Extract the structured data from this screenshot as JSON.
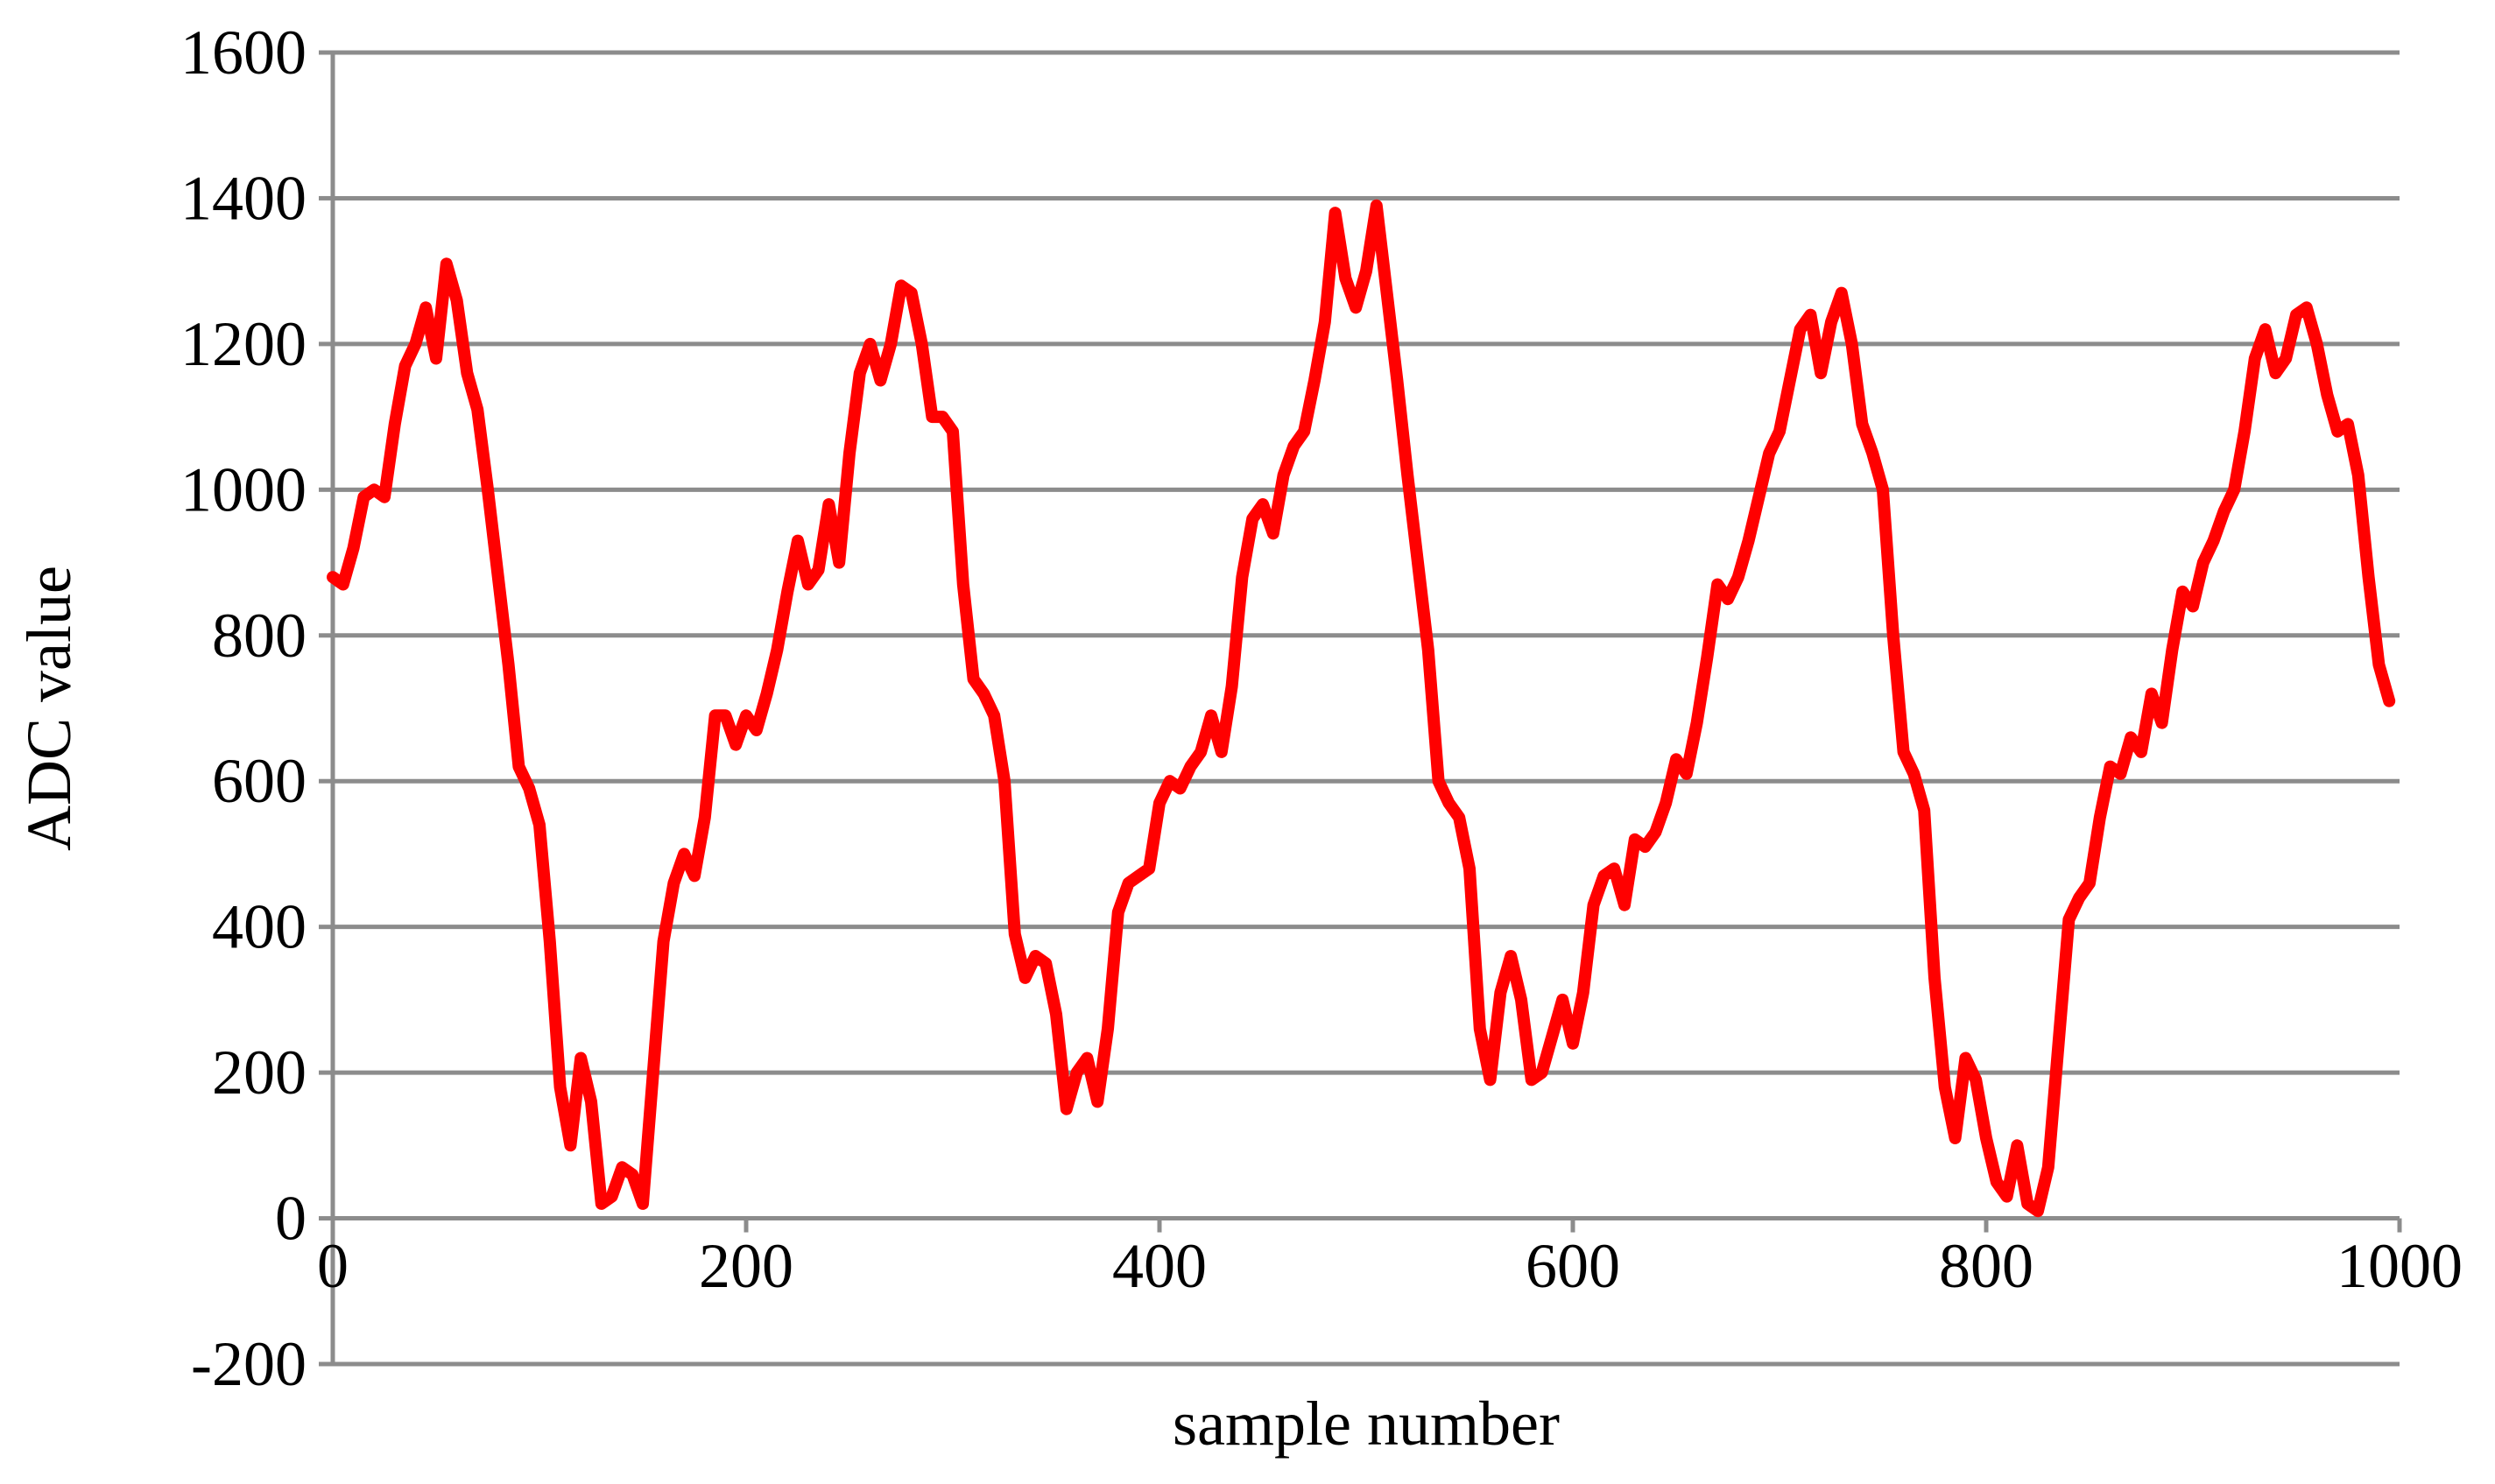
{
  "chart_data": {
    "type": "line",
    "title": "",
    "xlabel": "sample number",
    "ylabel": "ADC value",
    "xlim": [
      0,
      1000
    ],
    "ylim": [
      -200,
      1600
    ],
    "x_ticks": [
      0,
      200,
      400,
      600,
      800,
      1000
    ],
    "y_ticks": [
      -200,
      0,
      200,
      400,
      600,
      800,
      1000,
      1200,
      1400,
      1600
    ],
    "grid": "horizontal",
    "legend": "none",
    "series": [
      {
        "color": "#ff0000",
        "points": [
          [
            0,
            880
          ],
          [
            5,
            870
          ],
          [
            10,
            920
          ],
          [
            15,
            990
          ],
          [
            20,
            1000
          ],
          [
            25,
            990
          ],
          [
            30,
            1090
          ],
          [
            35,
            1170
          ],
          [
            40,
            1200
          ],
          [
            45,
            1250
          ],
          [
            50,
            1180
          ],
          [
            55,
            1310
          ],
          [
            60,
            1260
          ],
          [
            65,
            1160
          ],
          [
            70,
            1110
          ],
          [
            75,
            1000
          ],
          [
            80,
            880
          ],
          [
            85,
            760
          ],
          [
            90,
            620
          ],
          [
            95,
            590
          ],
          [
            100,
            540
          ],
          [
            105,
            380
          ],
          [
            110,
            180
          ],
          [
            115,
            100
          ],
          [
            120,
            220
          ],
          [
            125,
            160
          ],
          [
            130,
            20
          ],
          [
            135,
            30
          ],
          [
            140,
            70
          ],
          [
            145,
            60
          ],
          [
            150,
            20
          ],
          [
            155,
            200
          ],
          [
            160,
            380
          ],
          [
            165,
            460
          ],
          [
            170,
            500
          ],
          [
            175,
            470
          ],
          [
            180,
            550
          ],
          [
            185,
            690
          ],
          [
            190,
            690
          ],
          [
            195,
            650
          ],
          [
            200,
            690
          ],
          [
            205,
            670
          ],
          [
            210,
            720
          ],
          [
            215,
            780
          ],
          [
            220,
            860
          ],
          [
            225,
            930
          ],
          [
            230,
            870
          ],
          [
            235,
            890
          ],
          [
            240,
            980
          ],
          [
            245,
            900
          ],
          [
            250,
            1050
          ],
          [
            255,
            1160
          ],
          [
            260,
            1200
          ],
          [
            265,
            1150
          ],
          [
            270,
            1200
          ],
          [
            275,
            1280
          ],
          [
            280,
            1270
          ],
          [
            285,
            1200
          ],
          [
            290,
            1100
          ],
          [
            295,
            1100
          ],
          [
            300,
            1080
          ],
          [
            305,
            870
          ],
          [
            310,
            740
          ],
          [
            315,
            720
          ],
          [
            320,
            690
          ],
          [
            325,
            600
          ],
          [
            330,
            390
          ],
          [
            335,
            330
          ],
          [
            340,
            360
          ],
          [
            345,
            350
          ],
          [
            350,
            280
          ],
          [
            355,
            150
          ],
          [
            360,
            200
          ],
          [
            365,
            220
          ],
          [
            370,
            160
          ],
          [
            375,
            260
          ],
          [
            380,
            420
          ],
          [
            385,
            460
          ],
          [
            390,
            470
          ],
          [
            395,
            480
          ],
          [
            400,
            570
          ],
          [
            405,
            600
          ],
          [
            410,
            590
          ],
          [
            415,
            620
          ],
          [
            420,
            640
          ],
          [
            425,
            690
          ],
          [
            430,
            640
          ],
          [
            435,
            730
          ],
          [
            440,
            880
          ],
          [
            445,
            960
          ],
          [
            450,
            980
          ],
          [
            455,
            940
          ],
          [
            460,
            1020
          ],
          [
            465,
            1060
          ],
          [
            470,
            1080
          ],
          [
            475,
            1150
          ],
          [
            480,
            1230
          ],
          [
            485,
            1380
          ],
          [
            490,
            1290
          ],
          [
            495,
            1250
          ],
          [
            500,
            1300
          ],
          [
            505,
            1390
          ],
          [
            510,
            1270
          ],
          [
            515,
            1150
          ],
          [
            520,
            1020
          ],
          [
            525,
            900
          ],
          [
            530,
            780
          ],
          [
            535,
            600
          ],
          [
            540,
            570
          ],
          [
            545,
            550
          ],
          [
            550,
            480
          ],
          [
            555,
            260
          ],
          [
            560,
            190
          ],
          [
            565,
            310
          ],
          [
            570,
            360
          ],
          [
            575,
            300
          ],
          [
            580,
            190
          ],
          [
            585,
            200
          ],
          [
            590,
            250
          ],
          [
            595,
            300
          ],
          [
            600,
            240
          ],
          [
            605,
            310
          ],
          [
            610,
            430
          ],
          [
            615,
            470
          ],
          [
            620,
            480
          ],
          [
            625,
            430
          ],
          [
            630,
            520
          ],
          [
            635,
            510
          ],
          [
            640,
            530
          ],
          [
            645,
            570
          ],
          [
            650,
            630
          ],
          [
            655,
            610
          ],
          [
            660,
            680
          ],
          [
            665,
            770
          ],
          [
            670,
            870
          ],
          [
            675,
            850
          ],
          [
            680,
            880
          ],
          [
            685,
            930
          ],
          [
            690,
            990
          ],
          [
            695,
            1050
          ],
          [
            700,
            1080
          ],
          [
            705,
            1150
          ],
          [
            710,
            1220
          ],
          [
            715,
            1240
          ],
          [
            720,
            1160
          ],
          [
            725,
            1230
          ],
          [
            730,
            1270
          ],
          [
            735,
            1200
          ],
          [
            740,
            1090
          ],
          [
            745,
            1050
          ],
          [
            750,
            1000
          ],
          [
            755,
            800
          ],
          [
            760,
            640
          ],
          [
            765,
            610
          ],
          [
            770,
            560
          ],
          [
            775,
            330
          ],
          [
            780,
            180
          ],
          [
            785,
            110
          ],
          [
            790,
            220
          ],
          [
            795,
            190
          ],
          [
            800,
            110
          ],
          [
            805,
            50
          ],
          [
            810,
            30
          ],
          [
            815,
            100
          ],
          [
            820,
            20
          ],
          [
            825,
            10
          ],
          [
            830,
            70
          ],
          [
            835,
            240
          ],
          [
            840,
            410
          ],
          [
            845,
            440
          ],
          [
            850,
            460
          ],
          [
            855,
            550
          ],
          [
            860,
            620
          ],
          [
            865,
            610
          ],
          [
            870,
            660
          ],
          [
            875,
            640
          ],
          [
            880,
            720
          ],
          [
            885,
            680
          ],
          [
            890,
            780
          ],
          [
            895,
            860
          ],
          [
            900,
            840
          ],
          [
            905,
            900
          ],
          [
            910,
            930
          ],
          [
            915,
            970
          ],
          [
            920,
            1000
          ],
          [
            925,
            1080
          ],
          [
            930,
            1180
          ],
          [
            935,
            1220
          ],
          [
            940,
            1160
          ],
          [
            945,
            1180
          ],
          [
            950,
            1240
          ],
          [
            955,
            1250
          ],
          [
            960,
            1200
          ],
          [
            965,
            1130
          ],
          [
            970,
            1080
          ],
          [
            975,
            1090
          ],
          [
            980,
            1020
          ],
          [
            985,
            880
          ],
          [
            990,
            760
          ],
          [
            995,
            710
          ]
        ]
      }
    ]
  }
}
